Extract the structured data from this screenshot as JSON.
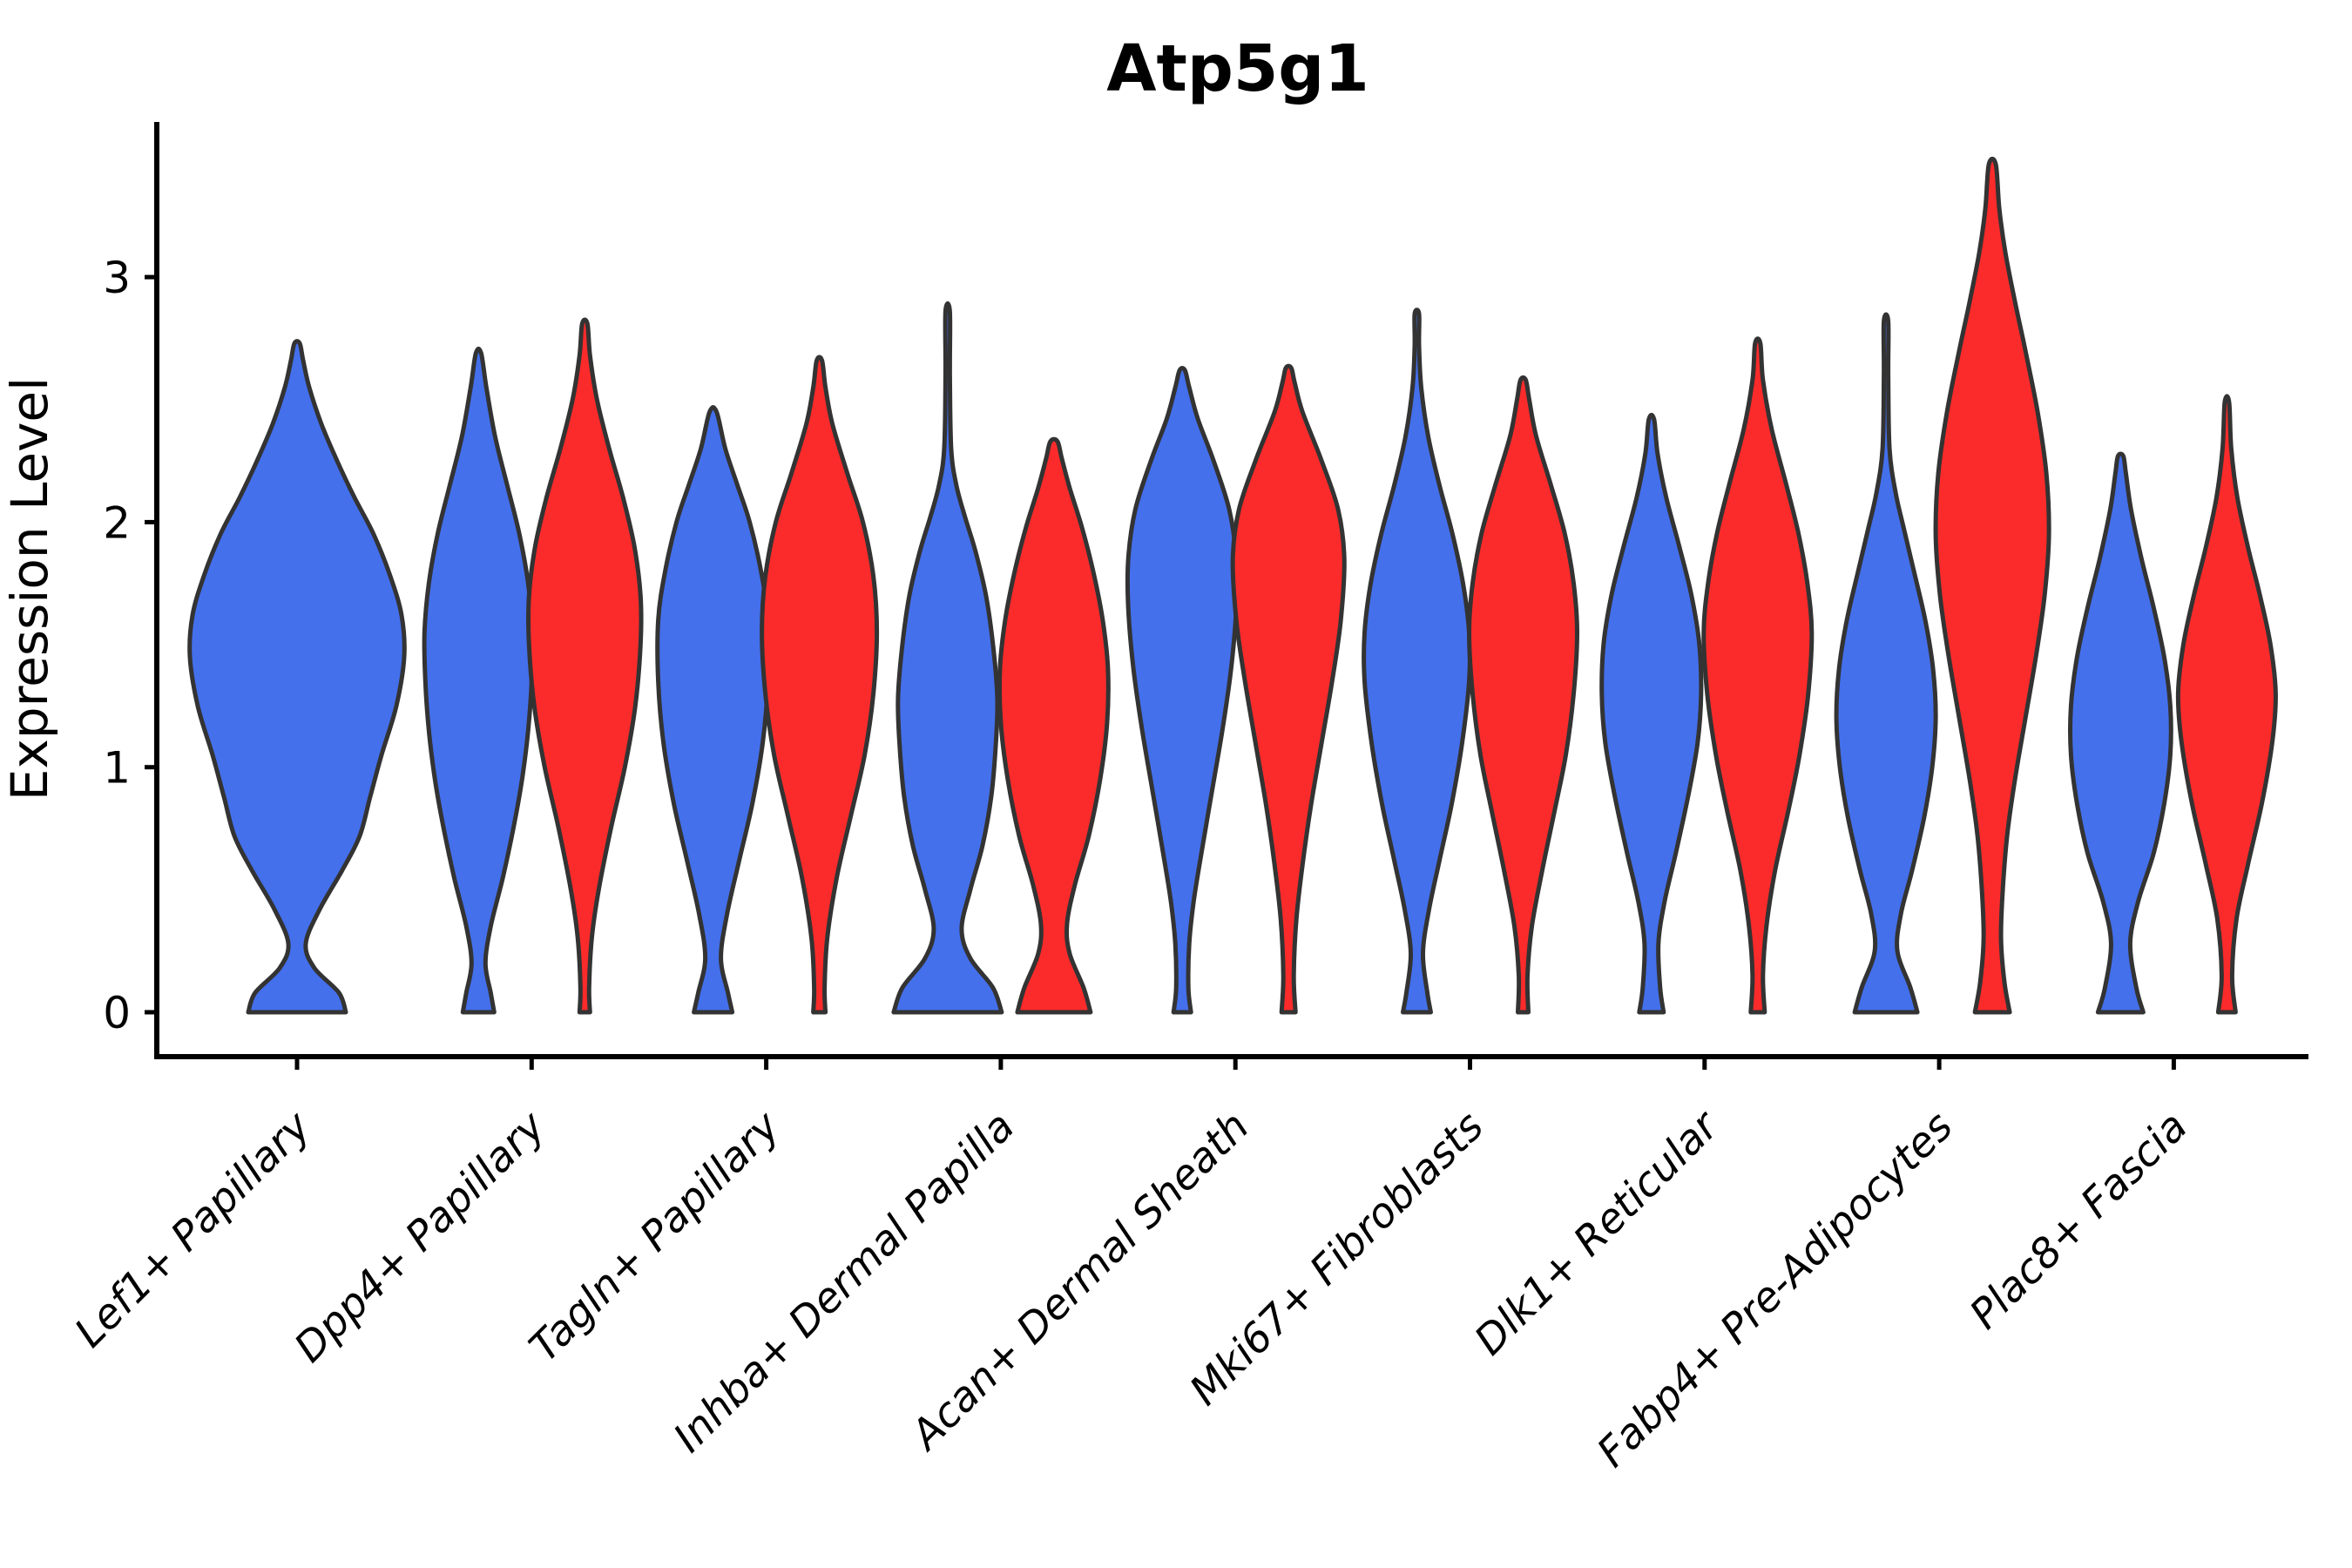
{
  "chart_data": {
    "type": "violin",
    "title": "Atp5g1",
    "ylabel": "Expression Level",
    "ylim": [
      0,
      3.63
    ],
    "yticks": [
      "0",
      "1",
      "2",
      "3"
    ],
    "grid": "off",
    "legend": "none",
    "categories": [
      "Lef1+ Papillary",
      "Dpp4+ Papillary",
      "Tagln+ Papillary",
      "Inhba+ Dermal Papilla",
      "Acan+ Dermal Sheath",
      "Mki67+ Fibroblasts",
      "Dlk1+ Reticular",
      "Fabp4+ Pre-Adipocytes",
      "Plac8+ Fascia"
    ],
    "series_colors": {
      "blue": "#4470EC",
      "red": "#FB2B2B"
    },
    "outline_color": "#333333",
    "violins": [
      {
        "group": 0,
        "split": "blue",
        "width": "full",
        "max": 2.73,
        "profile": [
          [
            0,
            56
          ],
          [
            0.08,
            48
          ],
          [
            0.18,
            20
          ],
          [
            0.28,
            10
          ],
          [
            0.42,
            26
          ],
          [
            0.58,
            52
          ],
          [
            0.72,
            72
          ],
          [
            0.88,
            84
          ],
          [
            1.05,
            97
          ],
          [
            1.25,
            114
          ],
          [
            1.45,
            123
          ],
          [
            1.62,
            120
          ],
          [
            1.78,
            107
          ],
          [
            1.95,
            88
          ],
          [
            2.1,
            66
          ],
          [
            2.25,
            46
          ],
          [
            2.4,
            28
          ],
          [
            2.55,
            14
          ],
          [
            2.66,
            7
          ],
          [
            2.73,
            3
          ]
        ]
      },
      {
        "group": 1,
        "split": "blue",
        "width": "half",
        "max": 2.69,
        "profile": [
          [
            0,
            18
          ],
          [
            0.08,
            14
          ],
          [
            0.2,
            8
          ],
          [
            0.35,
            14
          ],
          [
            0.55,
            28
          ],
          [
            0.75,
            40
          ],
          [
            0.95,
            50
          ],
          [
            1.15,
            57
          ],
          [
            1.35,
            61
          ],
          [
            1.55,
            62
          ],
          [
            1.75,
            57
          ],
          [
            1.95,
            47
          ],
          [
            2.15,
            33
          ],
          [
            2.35,
            19
          ],
          [
            2.55,
            9
          ],
          [
            2.69,
            3
          ]
        ]
      },
      {
        "group": 1,
        "split": "red",
        "width": "half",
        "max": 2.81,
        "profile": [
          [
            0,
            6
          ],
          [
            0.1,
            5
          ],
          [
            0.3,
            8
          ],
          [
            0.5,
            16
          ],
          [
            0.75,
            30
          ],
          [
            1.0,
            46
          ],
          [
            1.25,
            58
          ],
          [
            1.5,
            64
          ],
          [
            1.7,
            64
          ],
          [
            1.9,
            57
          ],
          [
            2.1,
            44
          ],
          [
            2.3,
            28
          ],
          [
            2.5,
            14
          ],
          [
            2.68,
            6
          ],
          [
            2.81,
            3
          ]
        ]
      },
      {
        "group": 2,
        "split": "blue",
        "width": "half",
        "max": 2.45,
        "profile": [
          [
            0,
            22
          ],
          [
            0.08,
            17
          ],
          [
            0.22,
            9
          ],
          [
            0.4,
            16
          ],
          [
            0.62,
            30
          ],
          [
            0.85,
            45
          ],
          [
            1.1,
            57
          ],
          [
            1.35,
            63
          ],
          [
            1.6,
            63
          ],
          [
            1.8,
            55
          ],
          [
            2.0,
            42
          ],
          [
            2.15,
            28
          ],
          [
            2.3,
            14
          ],
          [
            2.45,
            4
          ]
        ]
      },
      {
        "group": 2,
        "split": "red",
        "width": "half",
        "max": 2.66,
        "profile": [
          [
            0,
            7
          ],
          [
            0.1,
            6
          ],
          [
            0.3,
            9
          ],
          [
            0.55,
            20
          ],
          [
            0.8,
            36
          ],
          [
            1.05,
            52
          ],
          [
            1.3,
            62
          ],
          [
            1.55,
            66
          ],
          [
            1.78,
            62
          ],
          [
            2.0,
            50
          ],
          [
            2.2,
            32
          ],
          [
            2.4,
            15
          ],
          [
            2.55,
            7
          ],
          [
            2.66,
            3
          ]
        ]
      },
      {
        "group": 3,
        "split": "blue",
        "width": "half",
        "max": 2.86,
        "profile": [
          [
            0,
            62
          ],
          [
            0.1,
            52
          ],
          [
            0.22,
            26
          ],
          [
            0.34,
            16
          ],
          [
            0.5,
            26
          ],
          [
            0.68,
            40
          ],
          [
            0.88,
            50
          ],
          [
            1.08,
            55
          ],
          [
            1.28,
            57
          ],
          [
            1.5,
            52
          ],
          [
            1.7,
            44
          ],
          [
            1.88,
            32
          ],
          [
            2.02,
            20
          ],
          [
            2.15,
            10
          ],
          [
            2.3,
            4
          ],
          [
            2.6,
            2.5
          ],
          [
            2.86,
            2.5
          ]
        ]
      },
      {
        "group": 3,
        "split": "red",
        "width": "half",
        "max": 2.33,
        "profile": [
          [
            0,
            42
          ],
          [
            0.1,
            34
          ],
          [
            0.24,
            18
          ],
          [
            0.36,
            15
          ],
          [
            0.52,
            24
          ],
          [
            0.72,
            40
          ],
          [
            0.95,
            53
          ],
          [
            1.18,
            61
          ],
          [
            1.4,
            62
          ],
          [
            1.6,
            56
          ],
          [
            1.8,
            45
          ],
          [
            1.98,
            32
          ],
          [
            2.14,
            18
          ],
          [
            2.26,
            9
          ],
          [
            2.33,
            4
          ]
        ]
      },
      {
        "group": 4,
        "split": "blue",
        "width": "half",
        "max": 2.62,
        "profile": [
          [
            0,
            10
          ],
          [
            0.1,
            7
          ],
          [
            0.28,
            8
          ],
          [
            0.45,
            13
          ],
          [
            0.65,
            22
          ],
          [
            0.9,
            34
          ],
          [
            1.15,
            46
          ],
          [
            1.4,
            56
          ],
          [
            1.65,
            62
          ],
          [
            1.85,
            62
          ],
          [
            2.05,
            54
          ],
          [
            2.25,
            36
          ],
          [
            2.42,
            18
          ],
          [
            2.55,
            8
          ],
          [
            2.62,
            3
          ]
        ]
      },
      {
        "group": 4,
        "split": "red",
        "width": "half",
        "max": 2.63,
        "profile": [
          [
            0,
            8
          ],
          [
            0.15,
            6
          ],
          [
            0.38,
            9
          ],
          [
            0.6,
            16
          ],
          [
            0.85,
            26
          ],
          [
            1.1,
            38
          ],
          [
            1.35,
            50
          ],
          [
            1.6,
            60
          ],
          [
            1.85,
            64
          ],
          [
            2.05,
            57
          ],
          [
            2.25,
            38
          ],
          [
            2.45,
            16
          ],
          [
            2.57,
            7
          ],
          [
            2.63,
            3
          ]
        ]
      },
      {
        "group": 5,
        "split": "blue",
        "width": "half",
        "max": 2.85,
        "profile": [
          [
            0,
            16
          ],
          [
            0.08,
            12
          ],
          [
            0.24,
            7
          ],
          [
            0.42,
            14
          ],
          [
            0.62,
            26
          ],
          [
            0.85,
            40
          ],
          [
            1.1,
            52
          ],
          [
            1.35,
            60
          ],
          [
            1.55,
            60
          ],
          [
            1.75,
            53
          ],
          [
            1.95,
            41
          ],
          [
            2.15,
            26
          ],
          [
            2.35,
            13
          ],
          [
            2.55,
            5
          ],
          [
            2.72,
            2.5
          ],
          [
            2.85,
            2.5
          ]
        ]
      },
      {
        "group": 5,
        "split": "red",
        "width": "half",
        "max": 2.58,
        "profile": [
          [
            0,
            6
          ],
          [
            0.15,
            5
          ],
          [
            0.35,
            10
          ],
          [
            0.58,
            22
          ],
          [
            0.82,
            36
          ],
          [
            1.05,
            49
          ],
          [
            1.3,
            58
          ],
          [
            1.55,
            62
          ],
          [
            1.75,
            58
          ],
          [
            1.95,
            48
          ],
          [
            2.15,
            32
          ],
          [
            2.35,
            15
          ],
          [
            2.5,
            7
          ],
          [
            2.58,
            3
          ]
        ]
      },
      {
        "group": 6,
        "split": "blue",
        "width": "half",
        "max": 2.42,
        "profile": [
          [
            0,
            14
          ],
          [
            0.1,
            10
          ],
          [
            0.28,
            8
          ],
          [
            0.45,
            15
          ],
          [
            0.65,
            28
          ],
          [
            0.88,
            42
          ],
          [
            1.1,
            53
          ],
          [
            1.3,
            57
          ],
          [
            1.5,
            55
          ],
          [
            1.7,
            46
          ],
          [
            1.9,
            32
          ],
          [
            2.1,
            17
          ],
          [
            2.28,
            7
          ],
          [
            2.42,
            3
          ]
        ]
      },
      {
        "group": 6,
        "split": "red",
        "width": "half",
        "max": 2.73,
        "profile": [
          [
            0,
            8
          ],
          [
            0.15,
            6
          ],
          [
            0.35,
            10
          ],
          [
            0.58,
            20
          ],
          [
            0.82,
            35
          ],
          [
            1.05,
            48
          ],
          [
            1.3,
            58
          ],
          [
            1.55,
            62
          ],
          [
            1.75,
            57
          ],
          [
            1.95,
            47
          ],
          [
            2.15,
            33
          ],
          [
            2.38,
            16
          ],
          [
            2.58,
            6
          ],
          [
            2.73,
            3
          ]
        ]
      },
      {
        "group": 7,
        "split": "blue",
        "width": "half",
        "max": 2.82,
        "profile": [
          [
            0,
            36
          ],
          [
            0.1,
            28
          ],
          [
            0.25,
            13
          ],
          [
            0.4,
            17
          ],
          [
            0.58,
            30
          ],
          [
            0.8,
            44
          ],
          [
            1.0,
            53
          ],
          [
            1.2,
            57
          ],
          [
            1.4,
            54
          ],
          [
            1.6,
            45
          ],
          [
            1.8,
            32
          ],
          [
            1.98,
            20
          ],
          [
            2.12,
            11
          ],
          [
            2.3,
            4
          ],
          [
            2.6,
            2.5
          ],
          [
            2.82,
            2.5
          ]
        ]
      },
      {
        "group": 7,
        "split": "red",
        "width": "half",
        "max": 3.46,
        "profile": [
          [
            0,
            20
          ],
          [
            0.12,
            14
          ],
          [
            0.3,
            10
          ],
          [
            0.5,
            12
          ],
          [
            0.72,
            17
          ],
          [
            0.95,
            26
          ],
          [
            1.2,
            38
          ],
          [
            1.45,
            50
          ],
          [
            1.7,
            60
          ],
          [
            1.95,
            65
          ],
          [
            2.2,
            62
          ],
          [
            2.45,
            52
          ],
          [
            2.7,
            38
          ],
          [
            2.9,
            26
          ],
          [
            3.1,
            15
          ],
          [
            3.28,
            8
          ],
          [
            3.46,
            4
          ]
        ]
      },
      {
        "group": 8,
        "split": "blue",
        "width": "half",
        "max": 2.27,
        "profile": [
          [
            0,
            26
          ],
          [
            0.1,
            18
          ],
          [
            0.28,
            11
          ],
          [
            0.45,
            20
          ],
          [
            0.65,
            38
          ],
          [
            0.85,
            50
          ],
          [
            1.05,
            57
          ],
          [
            1.25,
            57
          ],
          [
            1.45,
            50
          ],
          [
            1.65,
            38
          ],
          [
            1.85,
            24
          ],
          [
            2.05,
            12
          ],
          [
            2.2,
            6
          ],
          [
            2.27,
            3
          ]
        ]
      },
      {
        "group": 8,
        "split": "red",
        "width": "half",
        "max": 2.49,
        "profile": [
          [
            0,
            10
          ],
          [
            0.15,
            6
          ],
          [
            0.38,
            11
          ],
          [
            0.6,
            24
          ],
          [
            0.85,
            40
          ],
          [
            1.1,
            52
          ],
          [
            1.3,
            56
          ],
          [
            1.5,
            50
          ],
          [
            1.7,
            38
          ],
          [
            1.9,
            24
          ],
          [
            2.1,
            12
          ],
          [
            2.3,
            5
          ],
          [
            2.49,
            2.5
          ]
        ]
      }
    ]
  }
}
